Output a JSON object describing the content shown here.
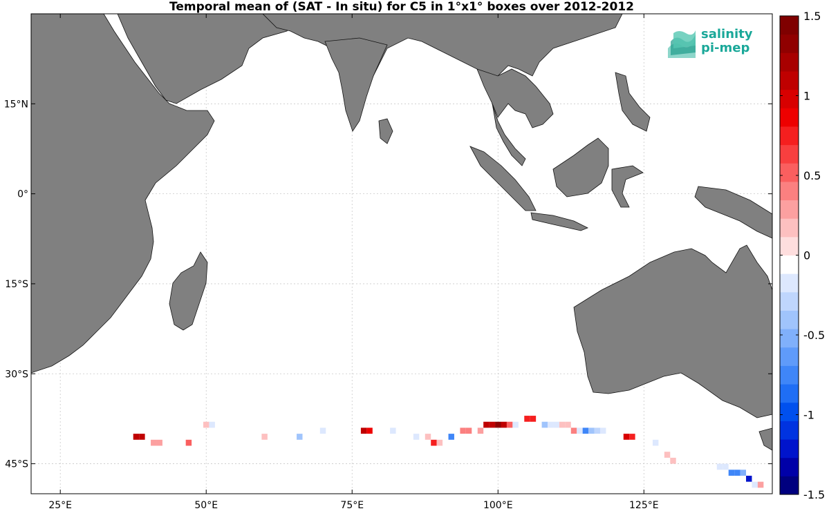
{
  "chart_data": {
    "type": "heatmap",
    "title": "Temporal mean of (SAT - In situ) for C5 in 1°x1° boxes over 2012-2012",
    "x_ticks": [
      {
        "value": 25,
        "label": "25°E"
      },
      {
        "value": 50,
        "label": "50°E"
      },
      {
        "value": 75,
        "label": "75°E"
      },
      {
        "value": 100,
        "label": "100°E"
      },
      {
        "value": 125,
        "label": "125°E"
      }
    ],
    "y_ticks": [
      {
        "value": 15,
        "label": "15°N"
      },
      {
        "value": 0,
        "label": "0°"
      },
      {
        "value": -15,
        "label": "15°S"
      },
      {
        "value": -30,
        "label": "30°S"
      },
      {
        "value": -45,
        "label": "45°S"
      }
    ],
    "xlim": [
      20,
      147
    ],
    "ylim": [
      -50,
      30
    ],
    "grid": true,
    "colorbar": {
      "range": [
        -1.5,
        1.5
      ],
      "ticks": [
        {
          "value": 1.5,
          "label": "1.5"
        },
        {
          "value": 1,
          "label": "1"
        },
        {
          "value": 0.5,
          "label": "0.5"
        },
        {
          "value": 0,
          "label": "0"
        },
        {
          "value": -0.5,
          "label": "-0.5"
        },
        {
          "value": -1,
          "label": "-1"
        },
        {
          "value": -1.5,
          "label": "-1.5"
        }
      ],
      "colors": [
        "#00007f",
        "#0000a8",
        "#0014cc",
        "#0033e0",
        "#0050ee",
        "#1f6ef5",
        "#3f86f8",
        "#5f9bfa",
        "#80b0fb",
        "#a0c4fc",
        "#bfd6fd",
        "#dde8fe",
        "#ffffff",
        "#fedede",
        "#fdc0c0",
        "#fca0a0",
        "#fb8080",
        "#fa5f5f",
        "#f83f3f",
        "#f51f1f",
        "#ee0000",
        "#d80000",
        "#bf0000",
        "#a80000",
        "#900000",
        "#7f0000"
      ]
    },
    "cells": [
      {
        "lon": 38,
        "lat": -40.5,
        "value": 1.05
      },
      {
        "lon": 39,
        "lat": -40.5,
        "value": 1.05
      },
      {
        "lon": 41,
        "lat": -41.5,
        "value": 0.3
      },
      {
        "lon": 42,
        "lat": -41.5,
        "value": 0.3
      },
      {
        "lon": 47,
        "lat": -41.5,
        "value": 0.55
      },
      {
        "lon": 50,
        "lat": -38.5,
        "value": 0.2
      },
      {
        "lon": 51,
        "lat": -38.5,
        "value": -0.2
      },
      {
        "lon": 60,
        "lat": -40.5,
        "value": 0.15
      },
      {
        "lon": 66,
        "lat": -40.5,
        "value": -0.4
      },
      {
        "lon": 70,
        "lat": -39.5,
        "value": -0.12
      },
      {
        "lon": 77,
        "lat": -39.5,
        "value": 1.05
      },
      {
        "lon": 78,
        "lat": -39.5,
        "value": 0.85
      },
      {
        "lon": 80,
        "lat": -39.5,
        "value": -0.1
      },
      {
        "lon": 82,
        "lat": -39.5,
        "value": -0.15
      },
      {
        "lon": 86,
        "lat": -40.5,
        "value": -0.15
      },
      {
        "lon": 88,
        "lat": -40.5,
        "value": 0.15
      },
      {
        "lon": 89,
        "lat": -41.5,
        "value": 0.75
      },
      {
        "lon": 90,
        "lat": -41.5,
        "value": 0.2
      },
      {
        "lon": 92,
        "lat": -40.5,
        "value": -0.8
      },
      {
        "lon": 94,
        "lat": -39.5,
        "value": 0.45
      },
      {
        "lon": 95,
        "lat": -39.5,
        "value": 0.45
      },
      {
        "lon": 97,
        "lat": -39.5,
        "value": 0.3
      },
      {
        "lon": 98,
        "lat": -38.5,
        "value": 1.1
      },
      {
        "lon": 99,
        "lat": -38.5,
        "value": 1.1
      },
      {
        "lon": 100,
        "lat": -38.5,
        "value": 1.35
      },
      {
        "lon": 101,
        "lat": -38.5,
        "value": 1.15
      },
      {
        "lon": 102,
        "lat": -38.5,
        "value": 0.5
      },
      {
        "lon": 103,
        "lat": -38.5,
        "value": -0.2
      },
      {
        "lon": 105,
        "lat": -37.5,
        "value": 0.7
      },
      {
        "lon": 106,
        "lat": -37.5,
        "value": 0.7
      },
      {
        "lon": 108,
        "lat": -38.5,
        "value": -0.35
      },
      {
        "lon": 109,
        "lat": -38.5,
        "value": -0.2
      },
      {
        "lon": 110,
        "lat": -38.5,
        "value": -0.2
      },
      {
        "lon": 111,
        "lat": -38.5,
        "value": 0.2
      },
      {
        "lon": 112,
        "lat": -38.5,
        "value": 0.2
      },
      {
        "lon": 113,
        "lat": -39.5,
        "value": 0.4
      },
      {
        "lon": 114,
        "lat": -39.5,
        "value": -0.15
      },
      {
        "lon": 115,
        "lat": -39.5,
        "value": -0.7
      },
      {
        "lon": 116,
        "lat": -39.5,
        "value": -0.35
      },
      {
        "lon": 117,
        "lat": -39.5,
        "value": -0.25
      },
      {
        "lon": 118,
        "lat": -39.5,
        "value": -0.2
      },
      {
        "lon": 122,
        "lat": -40.5,
        "value": 0.95
      },
      {
        "lon": 123,
        "lat": -40.5,
        "value": 0.75
      },
      {
        "lon": 127,
        "lat": -41.5,
        "value": -0.15
      },
      {
        "lon": 128,
        "lat": -42.5,
        "value": -0.1
      },
      {
        "lon": 129,
        "lat": -43.5,
        "value": 0.15
      },
      {
        "lon": 130,
        "lat": -44.5,
        "value": 0.2
      },
      {
        "lon": 138,
        "lat": -45.5,
        "value": -0.2
      },
      {
        "lon": 139,
        "lat": -45.5,
        "value": -0.2
      },
      {
        "lon": 140,
        "lat": -46.5,
        "value": -0.7
      },
      {
        "lon": 141,
        "lat": -46.5,
        "value": -0.7
      },
      {
        "lon": 142,
        "lat": -46.5,
        "value": -0.5
      },
      {
        "lon": 143,
        "lat": -47.5,
        "value": -1.2
      },
      {
        "lon": 144,
        "lat": -48.5,
        "value": -0.2
      },
      {
        "lon": 145,
        "lat": -48.5,
        "value": 0.3
      }
    ]
  },
  "logo": {
    "line1": "salinity",
    "line2": "pi-mep"
  }
}
